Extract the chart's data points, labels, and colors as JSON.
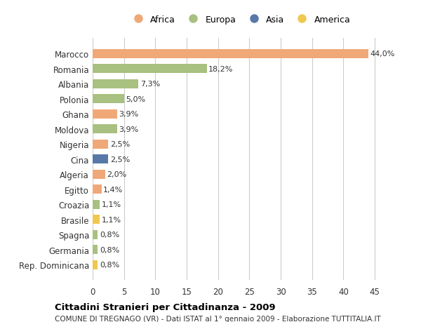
{
  "countries": [
    "Marocco",
    "Romania",
    "Albania",
    "Polonia",
    "Ghana",
    "Moldova",
    "Nigeria",
    "Cina",
    "Algeria",
    "Egitto",
    "Croazia",
    "Brasile",
    "Spagna",
    "Germania",
    "Rep. Dominicana"
  ],
  "values": [
    44.0,
    18.2,
    7.3,
    5.0,
    3.9,
    3.9,
    2.5,
    2.5,
    2.0,
    1.4,
    1.1,
    1.1,
    0.8,
    0.8,
    0.8
  ],
  "labels": [
    "44,0%",
    "18,2%",
    "7,3%",
    "5,0%",
    "3,9%",
    "3,9%",
    "2,5%",
    "2,5%",
    "2,0%",
    "1,4%",
    "1,1%",
    "1,1%",
    "0,8%",
    "0,8%",
    "0,8%"
  ],
  "continents": [
    "Africa",
    "Europa",
    "Europa",
    "Europa",
    "Africa",
    "Europa",
    "Africa",
    "Asia",
    "Africa",
    "Africa",
    "Europa",
    "America",
    "Europa",
    "Europa",
    "America"
  ],
  "colors": {
    "Africa": "#F0A878",
    "Europa": "#A8C080",
    "Asia": "#5878A8",
    "America": "#F0C850"
  },
  "legend_order": [
    "Africa",
    "Europa",
    "Asia",
    "America"
  ],
  "legend_colors": [
    "#F0A878",
    "#A8C080",
    "#5878A8",
    "#F0C850"
  ],
  "xlim": [
    0,
    47
  ],
  "xticks": [
    0,
    5,
    10,
    15,
    20,
    25,
    30,
    35,
    40,
    45
  ],
  "title": "Cittadini Stranieri per Cittadinanza - 2009",
  "subtitle": "COMUNE DI TREGNAGO (VR) - Dati ISTAT al 1° gennaio 2009 - Elaborazione TUTTITALIA.IT",
  "background_color": "#ffffff",
  "grid_color": "#cccccc",
  "bar_height": 0.6,
  "figsize": [
    6.0,
    4.6
  ],
  "dpi": 100
}
